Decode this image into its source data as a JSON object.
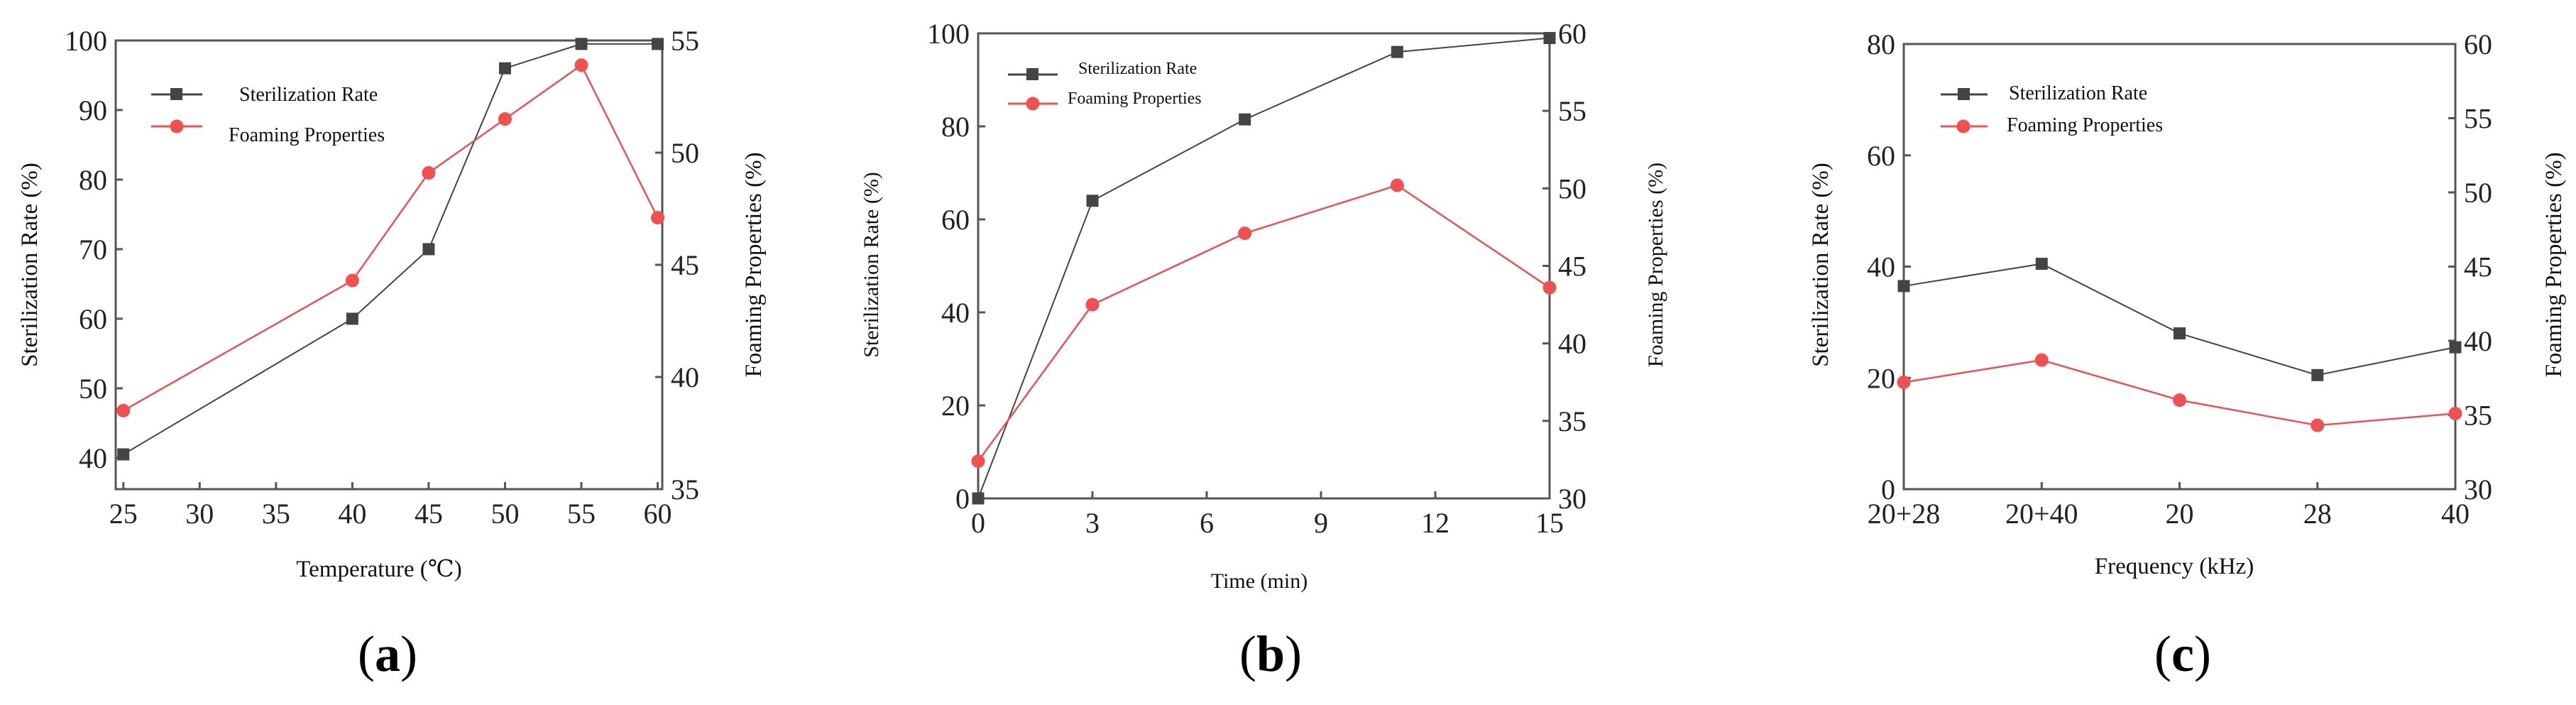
{
  "chart_data": [
    {
      "type": "line",
      "panel_label": "a",
      "xlabel": "Temperature (℃)",
      "ylabel": "Sterilization Rate (%)",
      "y2label": "Foaming Properties (%)",
      "x": [
        25,
        40,
        45,
        50,
        55,
        60
      ],
      "xticks": [
        "25",
        "30",
        "35",
        "40",
        "45",
        "50",
        "55",
        "60"
      ],
      "xlim": [
        24.5,
        60.3
      ],
      "ylim": [
        35.5,
        100
      ],
      "yticks": [
        40,
        50,
        60,
        70,
        80,
        90,
        100
      ],
      "y2lim": [
        35,
        55
      ],
      "y2ticks": [
        35,
        40,
        45,
        50,
        55
      ],
      "legend": "top-left",
      "series": [
        {
          "name": "Sterilization Rate",
          "axis": "left",
          "color": "#444444",
          "marker": "square",
          "values": [
            40.5,
            60,
            70,
            96,
            99.5,
            99.5
          ]
        },
        {
          "name": "Foaming Properties",
          "axis": "right",
          "color": "#f05050",
          "marker": "circle",
          "values": [
            38.5,
            44.3,
            49.1,
            51.5,
            53.9,
            47.1
          ]
        }
      ]
    },
    {
      "type": "line",
      "panel_label": "b",
      "xlabel": "Time (min)",
      "ylabel": "Sterilization Rate (%)",
      "y2label": "Foaming Properties (%)",
      "x": [
        0,
        3,
        7,
        11,
        15
      ],
      "xticks": [
        "0",
        "3",
        "6",
        "9",
        "12",
        "15"
      ],
      "xlim": [
        0,
        15
      ],
      "ylim": [
        0,
        100
      ],
      "yticks": [
        0,
        20,
        40,
        60,
        80,
        100
      ],
      "y2lim": [
        30,
        60
      ],
      "y2ticks": [
        30,
        35,
        40,
        45,
        50,
        55,
        60
      ],
      "legend": "top-left",
      "series": [
        {
          "name": "Sterilization Rate",
          "axis": "left",
          "color": "#444444",
          "marker": "square",
          "values": [
            0,
            64,
            81.5,
            96,
            99
          ]
        },
        {
          "name": "Foaming Properties",
          "axis": "right",
          "color": "#f05050",
          "marker": "circle",
          "values": [
            32.4,
            42.5,
            47.1,
            50.2,
            43.6
          ]
        }
      ]
    },
    {
      "type": "line",
      "panel_label": "c",
      "xlabel": "Frequency (kHz)",
      "ylabel": "Sterilization Rate (%)",
      "y2label": "Foaming Properties (%)",
      "categories": [
        "20+28",
        "20+40",
        "20",
        "28",
        "40"
      ],
      "xticks": [
        "20+28",
        "20+40",
        "20",
        "28",
        "40"
      ],
      "ylim": [
        0,
        80
      ],
      "yticks": [
        0,
        20,
        40,
        60,
        80
      ],
      "y2lim": [
        30,
        60
      ],
      "y2ticks": [
        30,
        35,
        40,
        45,
        50,
        55,
        60
      ],
      "legend": "top-left",
      "series": [
        {
          "name": "Sterilization Rate",
          "axis": "left",
          "color": "#444444",
          "marker": "square",
          "values": [
            36.5,
            40.5,
            28,
            20.5,
            25.5
          ]
        },
        {
          "name": "Foaming Properties",
          "axis": "right",
          "color": "#f05050",
          "marker": "circle",
          "values": [
            37.2,
            38.7,
            36,
            34.3,
            35.1
          ]
        }
      ]
    }
  ]
}
